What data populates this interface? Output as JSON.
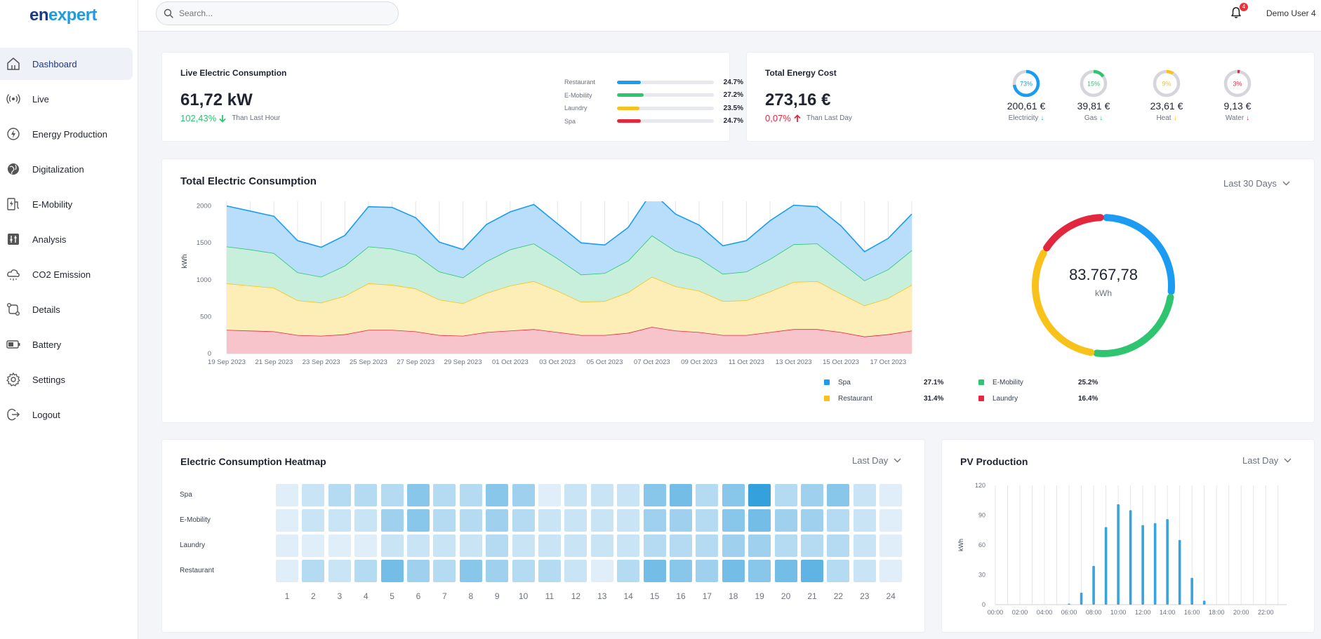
{
  "app": {
    "logo_part1": "en",
    "logo_part2": "expert"
  },
  "search": {
    "placeholder": "Search..."
  },
  "header": {
    "notifications_count": "4",
    "user_name": "Demo User 4"
  },
  "sidebar": {
    "items": [
      {
        "label": "Dashboard",
        "icon": "home-icon",
        "active": true
      },
      {
        "label": "Live",
        "icon": "broadcast-icon"
      },
      {
        "label": "Energy Production",
        "icon": "lightning-icon"
      },
      {
        "label": "Digitalization",
        "icon": "globe-icon"
      },
      {
        "label": "E-Mobility",
        "icon": "charging-station-icon"
      },
      {
        "label": "Analysis",
        "icon": "sliders-icon"
      },
      {
        "label": "CO2 Emission",
        "icon": "cloud-icon"
      },
      {
        "label": "Details",
        "icon": "flow-icon"
      },
      {
        "label": "Battery",
        "icon": "battery-icon"
      },
      {
        "label": "Settings",
        "icon": "gear-icon"
      },
      {
        "label": "Logout",
        "icon": "logout-icon"
      }
    ]
  },
  "live_consumption": {
    "title": "Live Electric Consumption",
    "value": "61,72 kW",
    "delta": "102,43%",
    "delta_direction": "down",
    "delta_label": "Than Last Hour",
    "breakdown": [
      {
        "name": "Restaurant",
        "pct": "24.7%",
        "fill": 0.247,
        "color": "#1b9cf2"
      },
      {
        "name": "E-Mobility",
        "pct": "27.2%",
        "fill": 0.272,
        "color": "#2ec470"
      },
      {
        "name": "Laundry",
        "pct": "23.5%",
        "fill": 0.235,
        "color": "#f8c21a"
      },
      {
        "name": "Spa",
        "pct": "24.7%",
        "fill": 0.247,
        "color": "#e3273f"
      }
    ]
  },
  "energy_cost": {
    "title": "Total Energy Cost",
    "value": "273,16 €",
    "delta": "0,07%",
    "delta_direction": "up",
    "delta_label": "Than Last Day",
    "items": [
      {
        "pct": "73%",
        "fill": 0.73,
        "value": "200,61 €",
        "label": "Electricity",
        "color": "#1b9cf2",
        "direction": "down"
      },
      {
        "pct": "15%",
        "fill": 0.15,
        "value": "39,81 €",
        "label": "Gas",
        "color": "#2ec470",
        "direction": "down"
      },
      {
        "pct": "9%",
        "fill": 0.09,
        "value": "23,61 €",
        "label": "Heat",
        "color": "#f8c21a",
        "direction": "down"
      },
      {
        "pct": "3%",
        "fill": 0.03,
        "value": "9,13 €",
        "label": "Water",
        "color": "#e3273f",
        "direction": "down"
      }
    ]
  },
  "total_consumption": {
    "title": "Total Electric Consumption",
    "period": "Last 30 Days",
    "total": "83.767,78",
    "total_unit": "kWh",
    "legend": [
      {
        "name": "Spa",
        "pct": "27.1%",
        "color": "#1b9cf2"
      },
      {
        "name": "E-Mobility",
        "pct": "25.2%",
        "color": "#2ec470"
      },
      {
        "name": "Restaurant",
        "pct": "31.4%",
        "color": "#f8c21a"
      },
      {
        "name": "Laundry",
        "pct": "16.4%",
        "color": "#e3273f"
      }
    ]
  },
  "heatmap": {
    "title": "Electric Consumption Heatmap",
    "period": "Last Day",
    "rows": [
      "Spa",
      "E-Mobility",
      "Laundry",
      "Restaurant"
    ],
    "hours": [
      "1",
      "2",
      "3",
      "4",
      "5",
      "6",
      "7",
      "8",
      "9",
      "10",
      "11",
      "12",
      "13",
      "14",
      "15",
      "16",
      "17",
      "18",
      "19",
      "20",
      "21",
      "22",
      "23",
      "24"
    ],
    "values": [
      [
        1,
        2,
        3,
        3,
        3,
        5,
        3,
        3,
        5,
        4,
        1,
        2,
        2,
        2,
        5,
        6,
        3,
        5,
        9,
        3,
        4,
        5,
        2,
        1
      ],
      [
        1,
        2,
        2,
        2,
        4,
        5,
        3,
        3,
        4,
        3,
        2,
        2,
        2,
        2,
        4,
        4,
        3,
        5,
        6,
        4,
        4,
        3,
        2,
        1
      ],
      [
        1,
        1,
        1,
        1,
        2,
        2,
        2,
        2,
        3,
        2,
        2,
        2,
        2,
        2,
        3,
        3,
        3,
        4,
        4,
        3,
        3,
        3,
        2,
        1
      ],
      [
        1,
        3,
        2,
        3,
        6,
        4,
        3,
        5,
        4,
        3,
        3,
        2,
        1,
        3,
        6,
        5,
        4,
        6,
        5,
        6,
        7,
        3,
        2,
        1
      ]
    ]
  },
  "pv_production": {
    "title": "PV Production",
    "period": "Last Day"
  },
  "chart_data": [
    {
      "type": "area",
      "stacked": true,
      "ylabel": "kWh",
      "ylim": [
        0,
        2500
      ],
      "yticks": [
        0,
        500,
        1000,
        1500,
        2000,
        2500
      ],
      "x": [
        "19 Sep 2023",
        "20 Sep 2023",
        "21 Sep 2023",
        "22 Sep 2023",
        "23 Sep 2023",
        "24 Sep 2023",
        "25 Sep 2023",
        "26 Sep 2023",
        "27 Sep 2023",
        "28 Sep 2023",
        "29 Sep 2023",
        "30 Sep 2023",
        "01 Oct 2023",
        "02 Oct 2023",
        "03 Oct 2023",
        "04 Oct 2023",
        "05 Oct 2023",
        "06 Oct 2023",
        "07 Oct 2023",
        "08 Oct 2023",
        "09 Oct 2023",
        "10 Oct 2023",
        "11 Oct 2023",
        "12 Oct 2023",
        "13 Oct 2023",
        "14 Oct 2023",
        "15 Oct 2023",
        "16 Oct 2023",
        "17 Oct 2023",
        "18 Oct 2023"
      ],
      "xtick_labels": [
        "19 Sep 2023",
        "21 Sep 2023",
        "23 Sep 2023",
        "25 Sep 2023",
        "27 Sep 2023",
        "29 Sep 2023",
        "01 Oct 2023",
        "03 Oct 2023",
        "05 Oct 2023",
        "07 Oct 2023",
        "09 Oct 2023",
        "11 Oct 2023",
        "13 Oct 2023",
        "15 Oct 2023",
        "17 Oct 2023"
      ],
      "grid": "vertical",
      "series": [
        {
          "name": "Laundry",
          "color": "#e3273f",
          "fill": "#f7c4cc",
          "values": [
            320,
            310,
            300,
            250,
            240,
            260,
            320,
            320,
            300,
            250,
            240,
            290,
            310,
            330,
            290,
            250,
            250,
            280,
            360,
            310,
            290,
            250,
            250,
            290,
            330,
            330,
            290,
            230,
            260,
            310
          ]
        },
        {
          "name": "Restaurant",
          "color": "#f8c21a",
          "fill": "#fdeeb8",
          "values": [
            630,
            610,
            590,
            470,
            450,
            520,
            630,
            610,
            580,
            480,
            440,
            530,
            610,
            650,
            560,
            450,
            460,
            550,
            680,
            600,
            560,
            460,
            470,
            550,
            640,
            650,
            520,
            420,
            490,
            620
          ]
        },
        {
          "name": "E-Mobility",
          "color": "#2ec470",
          "fill": "#c8efdb",
          "values": [
            500,
            490,
            470,
            380,
            350,
            410,
            500,
            490,
            460,
            380,
            350,
            430,
            490,
            510,
            440,
            370,
            380,
            430,
            560,
            480,
            440,
            370,
            390,
            440,
            510,
            510,
            430,
            340,
            390,
            470
          ]
        },
        {
          "name": "Spa",
          "color": "#1b9cf2",
          "fill": "#b8defb",
          "values": [
            550,
            520,
            500,
            430,
            400,
            410,
            540,
            560,
            500,
            400,
            380,
            500,
            510,
            530,
            470,
            430,
            380,
            450,
            590,
            500,
            450,
            380,
            420,
            520,
            530,
            500,
            490,
            390,
            420,
            490
          ]
        }
      ]
    },
    {
      "type": "pie",
      "donut": true,
      "labels": [
        "Spa",
        "E-Mobility",
        "Restaurant",
        "Laundry"
      ],
      "values": [
        27.1,
        25.2,
        31.4,
        16.4
      ],
      "colors": [
        "#1b9cf2",
        "#2ec470",
        "#f8c21a",
        "#e3273f"
      ]
    },
    {
      "type": "bar",
      "ylabel": "kWh",
      "ylim": [
        0,
        120
      ],
      "yticks": [
        0,
        30,
        60,
        90,
        120
      ],
      "categories": [
        "00:00",
        "01:00",
        "02:00",
        "03:00",
        "04:00",
        "05:00",
        "06:00",
        "07:00",
        "08:00",
        "09:00",
        "10:00",
        "11:00",
        "12:00",
        "13:00",
        "14:00",
        "15:00",
        "16:00",
        "17:00",
        "18:00",
        "19:00",
        "20:00",
        "21:00",
        "22:00",
        "23:00"
      ],
      "xtick_labels": [
        "00:00",
        "02:00",
        "04:00",
        "06:00",
        "08:00",
        "10:00",
        "12:00",
        "14:00",
        "16:00",
        "18:00",
        "20:00",
        "22:00"
      ],
      "values": [
        0,
        0,
        0,
        0,
        0,
        0,
        1,
        12,
        39,
        78,
        101,
        95,
        80,
        82,
        86,
        65,
        27,
        4,
        0,
        0,
        0,
        0,
        0,
        0
      ],
      "color": "#3aa3dc"
    }
  ]
}
